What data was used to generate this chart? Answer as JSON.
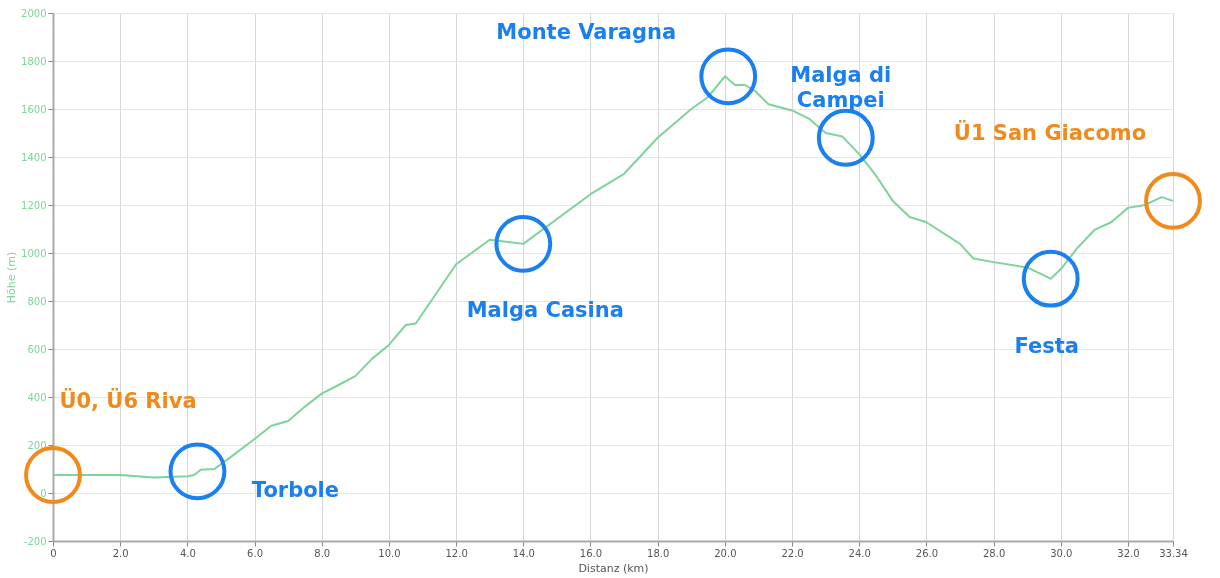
{
  "chart_data": {
    "type": "line",
    "xlabel": "Distanz (km)",
    "ylabel": "Höhe (m)",
    "x": [
      0,
      1,
      2,
      3,
      4,
      4.2,
      4.4,
      4.8,
      5.2,
      6,
      6.5,
      7,
      7.5,
      8,
      8.5,
      9,
      9.5,
      10,
      10.5,
      10.8,
      12,
      13,
      14,
      16,
      17,
      18,
      19,
      19.5,
      20,
      20.3,
      20.6,
      20.9,
      21.3,
      22,
      22.5,
      23,
      23.5,
      24,
      24.5,
      25,
      25.5,
      26,
      27,
      27.4,
      28,
      29,
      29.7,
      30,
      30.5,
      31,
      31.5,
      32,
      32.5,
      33,
      33.34
    ],
    "series": [
      {
        "color": "#7fd39a",
        "values": [
          75,
          75,
          75,
          65,
          70,
          75,
          97,
          100,
          140,
          225,
          280,
          300,
          360,
          414,
          450,
          487,
          560,
          617,
          700,
          706,
          953,
          1055,
          1038,
          1245,
          1330,
          1480,
          1600,
          1650,
          1736,
          1700,
          1700,
          1675,
          1620,
          1594,
          1560,
          1500,
          1485,
          1412,
          1322,
          1217,
          1150,
          1128,
          1038,
          977,
          962,
          940,
          893,
          933,
          1022,
          1096,
          1128,
          1188,
          1200,
          1233,
          1217
        ]
      }
    ],
    "xlim": [
      0,
      33.34
    ],
    "xticks": [
      0,
      {
        "value": 2,
        "label": "2.0"
      },
      {
        "value": 4,
        "label": "4.0"
      },
      {
        "value": 6,
        "label": "6.0"
      },
      {
        "value": 8,
        "label": "8.0"
      },
      {
        "value": 10,
        "label": "10.0"
      },
      {
        "value": 12,
        "label": "12.0"
      },
      {
        "value": 14,
        "label": "14.0"
      },
      {
        "value": 16,
        "label": "16.0"
      },
      {
        "value": 18,
        "label": "18.0"
      },
      {
        "value": 20,
        "label": "20.0"
      },
      {
        "value": 22,
        "label": "22.0"
      },
      {
        "value": 24,
        "label": "24.0"
      },
      {
        "value": 26,
        "label": "26.0"
      },
      {
        "value": 28,
        "label": "28.0"
      },
      {
        "value": 30,
        "label": "30.0"
      },
      {
        "value": 32,
        "label": "32.0"
      },
      33.34
    ],
    "ylim": [
      -200,
      2000
    ],
    "yticks": [
      -200,
      0,
      200,
      400,
      600,
      800,
      1000,
      1200,
      1400,
      1600,
      1800,
      2000
    ],
    "grid": true,
    "annotations": [
      {
        "text": "Ü0, Ü6 Riva",
        "x": 0,
        "y": 75
      },
      {
        "text": "Torbole",
        "x": 4.3,
        "y": 90
      },
      {
        "text": "Malga Casina",
        "x": 14,
        "y": 1038
      },
      {
        "text": "Monte Varagna",
        "x": 20.1,
        "y": 1736
      },
      {
        "text": "Malga di Campei",
        "x": 23.6,
        "y": 1480
      },
      {
        "text": "Festa",
        "x": 29.7,
        "y": 893
      },
      {
        "text": "Ü1 San Giacomo",
        "x": 33.34,
        "y": 1217
      }
    ]
  }
}
